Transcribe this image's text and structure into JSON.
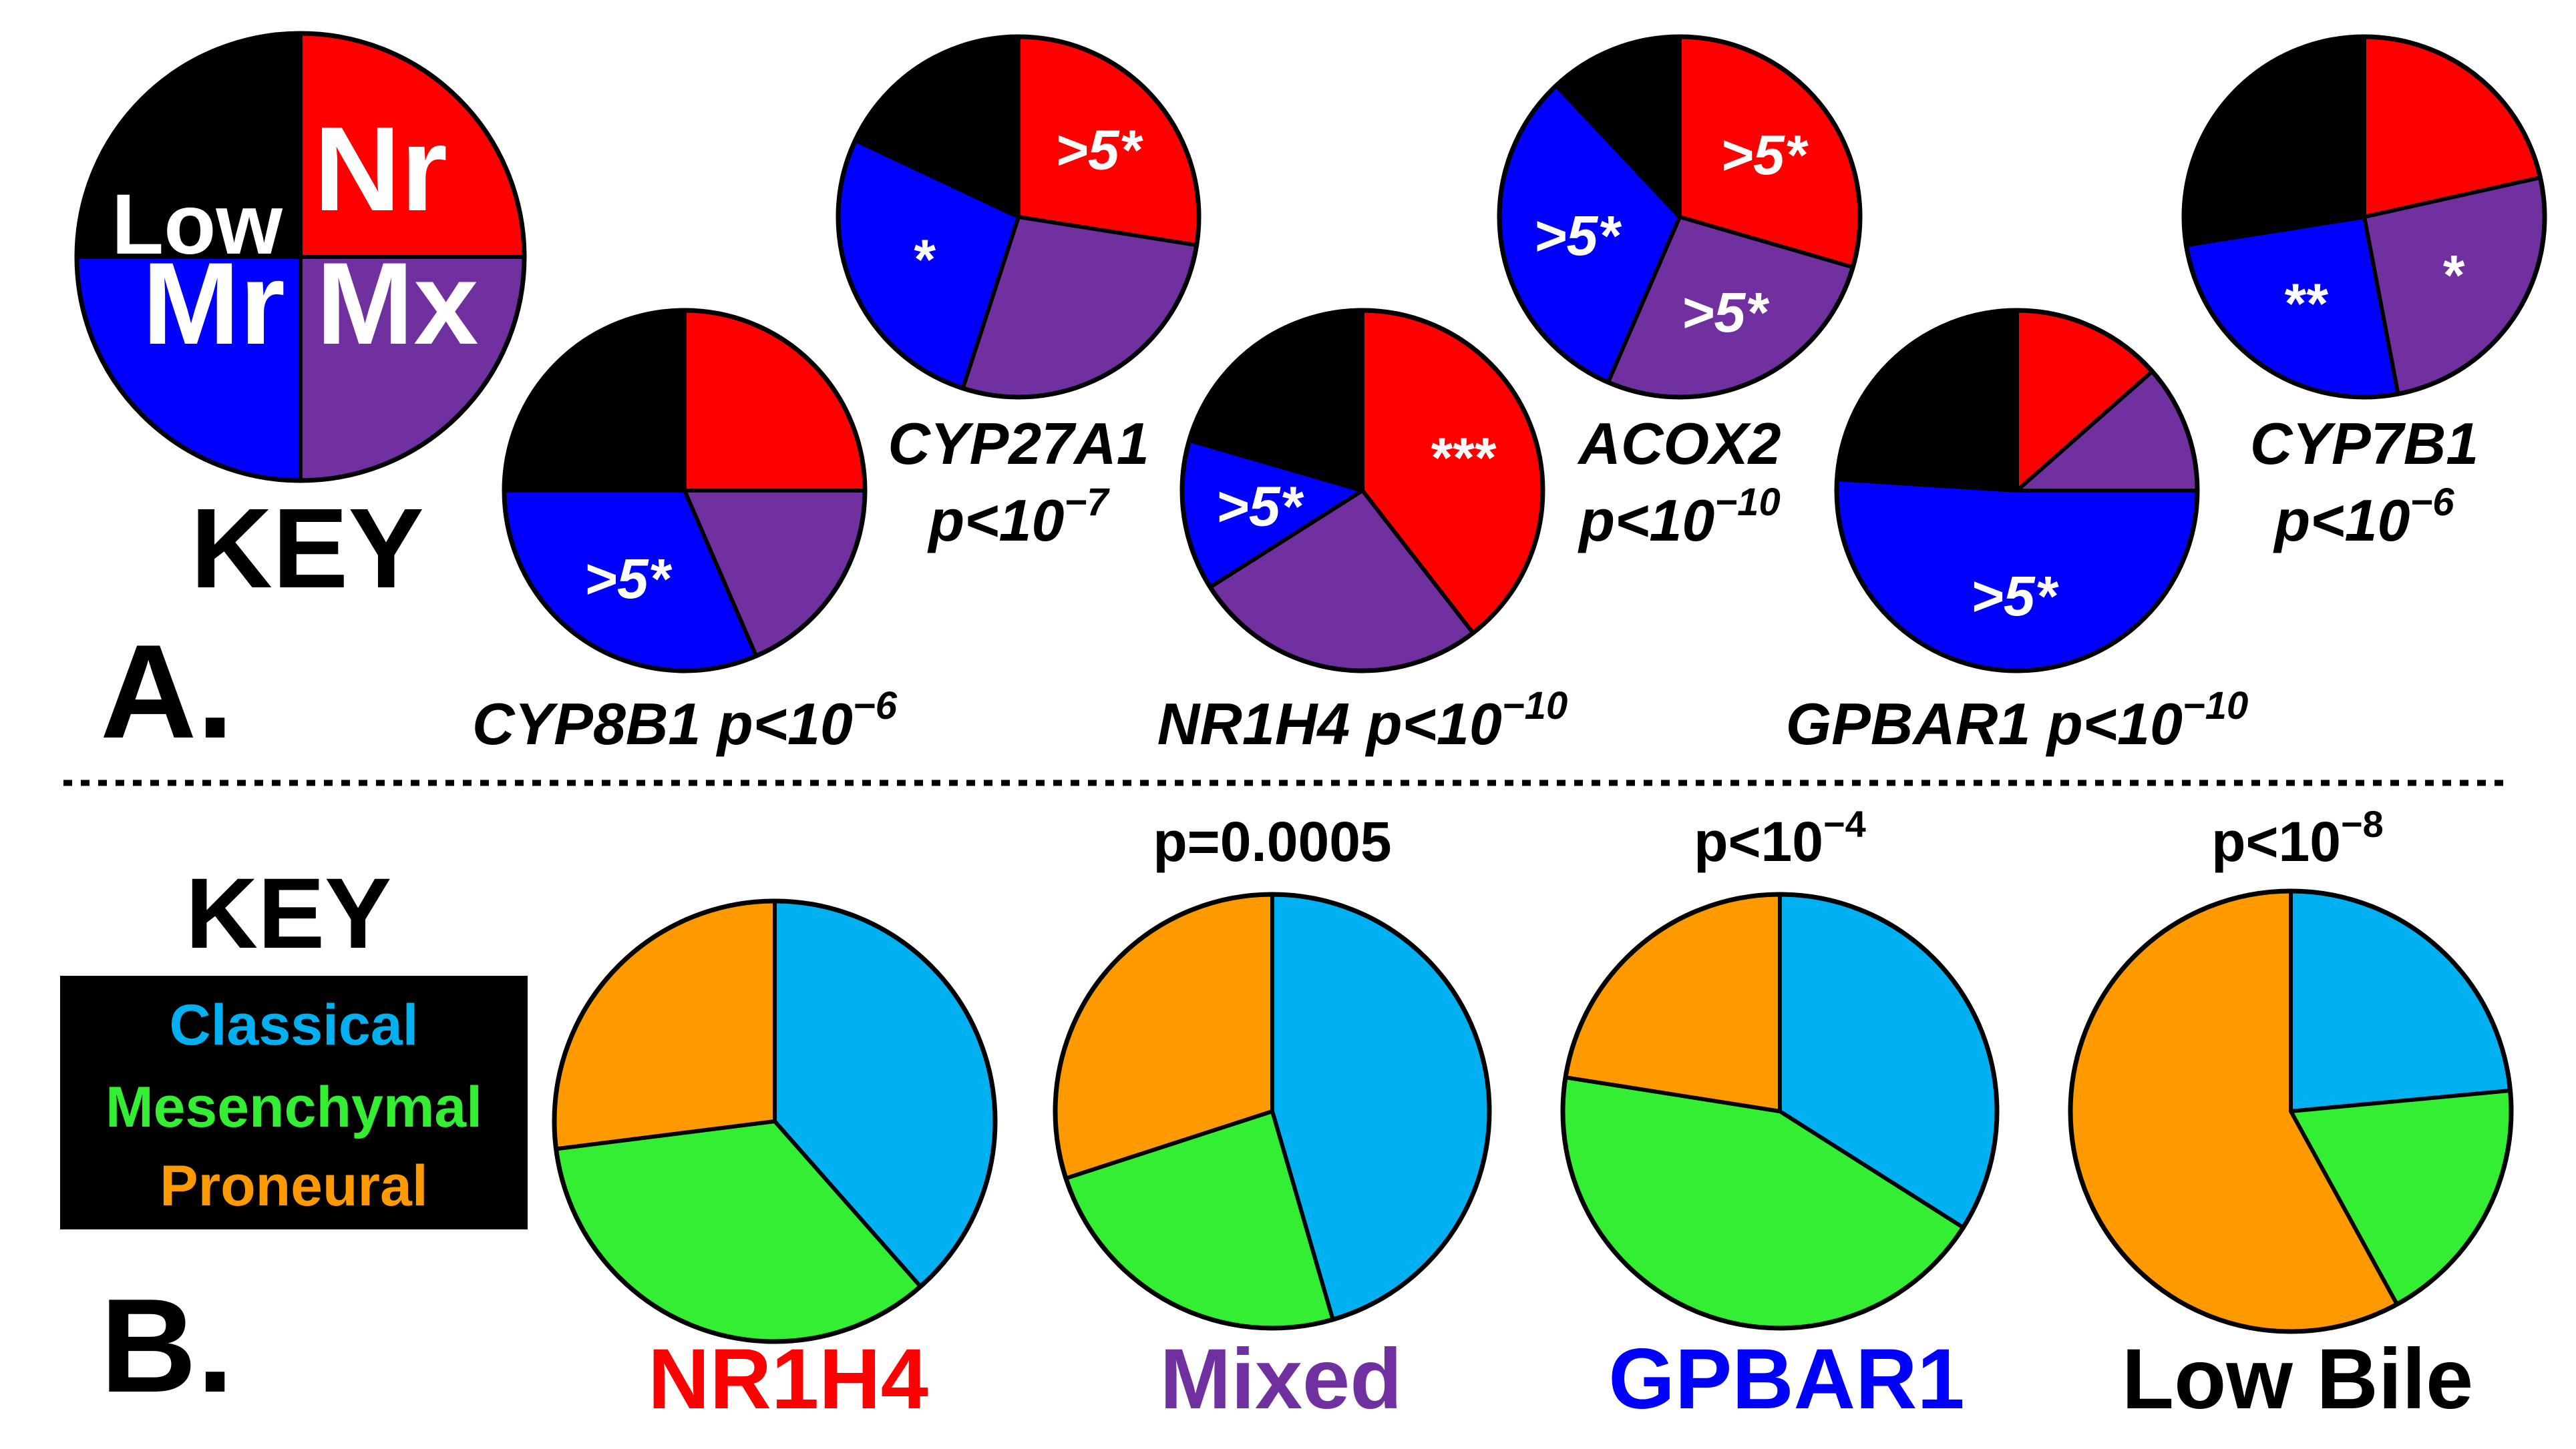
{
  "colors": {
    "low": "#000000",
    "nr": "#ff0000",
    "mr": "#0000ff",
    "mx": "#7030a0",
    "classical": "#00b0f0",
    "mesenchymal": "#33ee33",
    "proneural": "#ff9900",
    "white": "#ffffff",
    "mixed_label": "#7030a0"
  },
  "panel_a": {
    "panel_label": "A.",
    "key": {
      "title": "KEY",
      "segments": [
        {
          "label": "Nr",
          "value": 25,
          "color_key": "nr"
        },
        {
          "label": "Mx",
          "value": 25,
          "color_key": "mx"
        },
        {
          "label": "Mr",
          "value": 25,
          "color_key": "mr"
        },
        {
          "label": "Low",
          "value": 25,
          "color_key": "low"
        }
      ]
    }
  },
  "panel_b": {
    "panel_label": "B.",
    "key": {
      "title": "KEY",
      "items": [
        {
          "label": "Classical",
          "color_key": "classical"
        },
        {
          "label": "Mesenchymal",
          "color_key": "mesenchymal"
        },
        {
          "label": "Proneural",
          "color_key": "proneural"
        }
      ]
    }
  },
  "chart_data": [
    {
      "type": "pie",
      "panel": "A",
      "title": "CYP27A1",
      "pvalue": {
        "prefix": "p<10",
        "exp": "−7"
      },
      "categories": [
        "Nr",
        "Mx",
        "Mr",
        "Low"
      ],
      "values": [
        27.5,
        27.5,
        27,
        18
      ],
      "annotations": [
        ">5*",
        "",
        "*",
        ""
      ]
    },
    {
      "type": "pie",
      "panel": "A",
      "title": "ACOX2",
      "pvalue": {
        "prefix": "p<10",
        "exp": "−10"
      },
      "categories": [
        "Nr",
        "Mx",
        "Mr",
        "Low"
      ],
      "values": [
        29.5,
        27,
        31.5,
        12
      ],
      "annotations": [
        ">5*",
        ">5*",
        ">5*",
        ""
      ]
    },
    {
      "type": "pie",
      "panel": "A",
      "title": "CYP7B1",
      "pvalue": {
        "prefix": "p<10",
        "exp": "−6"
      },
      "categories": [
        "Nr",
        "Mx",
        "Mr",
        "Low"
      ],
      "values": [
        21.5,
        25.5,
        25.5,
        27.5
      ],
      "annotations": [
        "",
        "*",
        "**",
        ""
      ]
    },
    {
      "type": "pie",
      "panel": "A",
      "title": "CYP8B1",
      "pvalue": {
        "prefix": "p<10",
        "exp": "−6"
      },
      "categories": [
        "Nr",
        "Mx",
        "Mr",
        "Low"
      ],
      "values": [
        25,
        18.5,
        31.5,
        25
      ],
      "annotations": [
        "",
        "",
        ">5*",
        ""
      ]
    },
    {
      "type": "pie",
      "panel": "A",
      "title": "NR1H4",
      "pvalue": {
        "prefix": "p<10",
        "exp": "−10"
      },
      "categories": [
        "Nr",
        "Mx",
        "Mr",
        "Low"
      ],
      "values": [
        39.5,
        26.5,
        13.5,
        20.5
      ],
      "annotations": [
        "***",
        "",
        ">5*",
        ""
      ]
    },
    {
      "type": "pie",
      "panel": "A",
      "title": "GPBAR1",
      "pvalue": {
        "prefix": "p<10",
        "exp": "−10"
      },
      "categories": [
        "Nr",
        "Mx",
        "Mr",
        "Low"
      ],
      "values": [
        13.5,
        11.5,
        51,
        24
      ],
      "annotations": [
        "",
        "",
        ">5*",
        ""
      ]
    },
    {
      "type": "pie",
      "panel": "B",
      "title": "NR1H4",
      "pvalue": null,
      "categories": [
        "Classical",
        "Mesenchymal",
        "Proneural"
      ],
      "values": [
        38.5,
        34.5,
        27
      ],
      "title_color_key": "nr"
    },
    {
      "type": "pie",
      "panel": "B",
      "title": "Mixed",
      "pvalue": {
        "prefix": "p=0.0005",
        "exp": ""
      },
      "categories": [
        "Classical",
        "Mesenchymal",
        "Proneural"
      ],
      "values": [
        45.5,
        24.5,
        30
      ],
      "title_color_key": "mixed_label"
    },
    {
      "type": "pie",
      "panel": "B",
      "title": "GPBAR1",
      "pvalue": {
        "prefix": "p<10",
        "exp": "−4"
      },
      "categories": [
        "Classical",
        "Mesenchymal",
        "Proneural"
      ],
      "values": [
        34,
        43.5,
        22.5
      ],
      "title_color_key": "mr"
    },
    {
      "type": "pie",
      "panel": "B",
      "title": "Low Bile",
      "pvalue": {
        "prefix": "p<10",
        "exp": "−8"
      },
      "categories": [
        "Classical",
        "Mesenchymal",
        "Proneural"
      ],
      "values": [
        23.5,
        18.5,
        58
      ],
      "title_color_key": "low"
    }
  ]
}
